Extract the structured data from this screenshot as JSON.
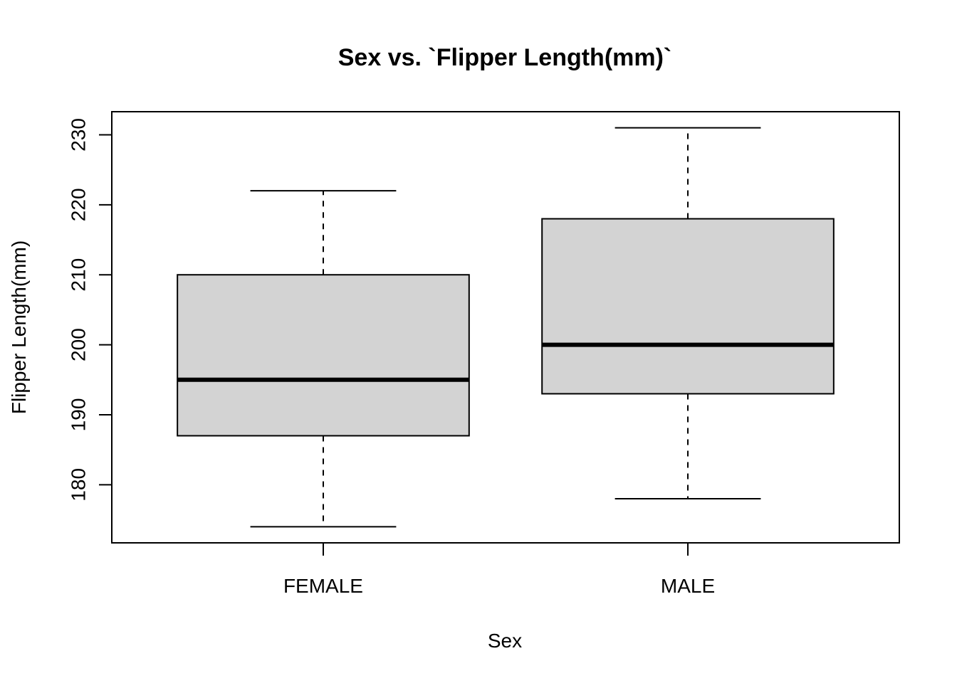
{
  "chart_data": {
    "type": "boxplot",
    "title": "Sex vs. `Flipper Length(mm)`",
    "xlabel": "Sex",
    "ylabel": "Flipper Length(mm)",
    "categories": [
      "FEMALE",
      "MALE"
    ],
    "boxes": [
      {
        "category": "FEMALE",
        "min": 174,
        "q1": 187,
        "median": 195,
        "q3": 210,
        "max": 222
      },
      {
        "category": "MALE",
        "min": 178,
        "q1": 193,
        "median": 200,
        "q3": 218,
        "max": 231
      }
    ],
    "yticks": [
      180,
      190,
      200,
      210,
      220,
      230
    ],
    "ylim": [
      171.7,
      233.3
    ],
    "box_fill": "#d3d3d3",
    "line_color": "#000000",
    "grid": false,
    "legend": false
  }
}
